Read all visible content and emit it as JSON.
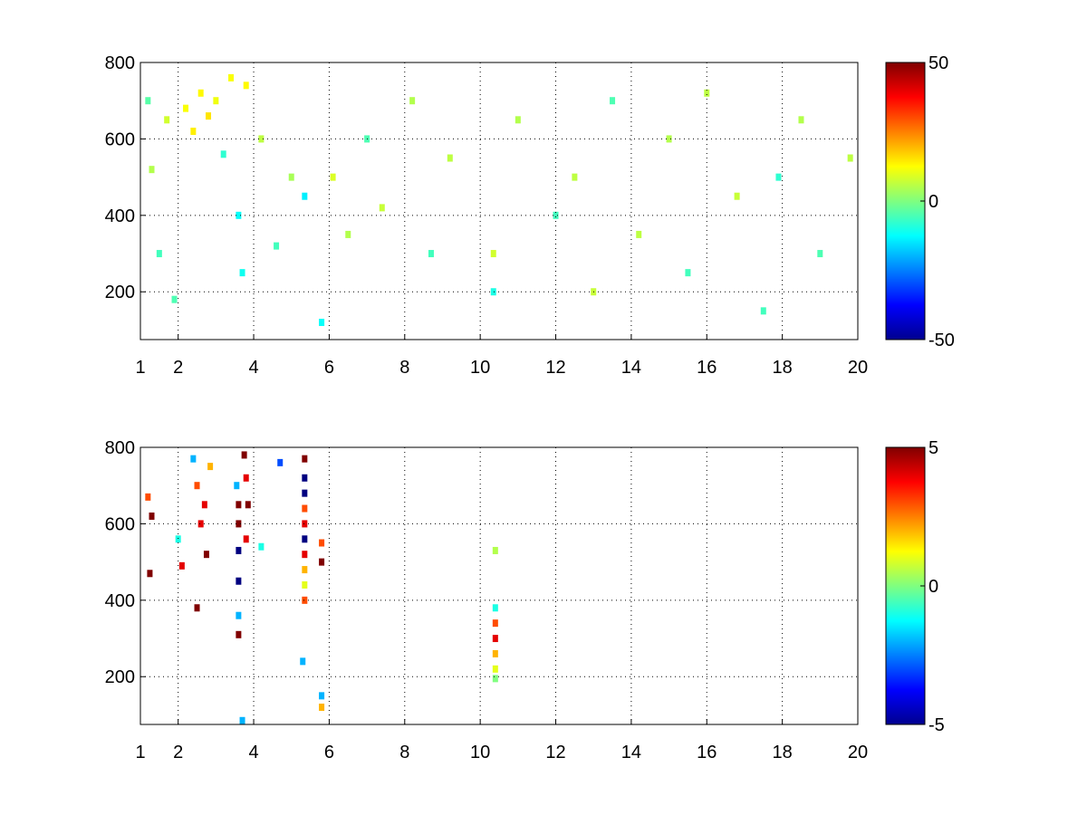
{
  "chart_data": [
    {
      "type": "heatmap",
      "title": "",
      "xlabel": "",
      "ylabel": "",
      "xlim": [
        1,
        20
      ],
      "ylim": [
        75,
        800
      ],
      "x_ticks": [
        1,
        2,
        4,
        6,
        8,
        10,
        12,
        14,
        16,
        18,
        20
      ],
      "x_tick_labels": [
        "1",
        "2",
        "4",
        "6",
        "8",
        "10",
        "12",
        "14",
        "16",
        "18",
        "20"
      ],
      "y_ticks": [
        200,
        400,
        600,
        800
      ],
      "y_tick_labels": [
        "200",
        "400",
        "600",
        "800"
      ],
      "grid": true,
      "grid_style": "dotted",
      "colormap": "jet",
      "clim": [
        -50,
        50
      ],
      "colorbar_ticks": [
        50,
        0,
        -50
      ],
      "colorbar_tick_labels": [
        "50",
        "0",
        "-50"
      ],
      "description_of_pattern": "",
      "cells": [
        {
          "x": 1.2,
          "y": 700,
          "v": -4
        },
        {
          "x": 1.3,
          "y": 520,
          "v": 5
        },
        {
          "x": 1.5,
          "y": 300,
          "v": -6
        },
        {
          "x": 1.7,
          "y": 650,
          "v": 8
        },
        {
          "x": 1.9,
          "y": 180,
          "v": -5
        },
        {
          "x": 2.2,
          "y": 680,
          "v": 12
        },
        {
          "x": 2.4,
          "y": 620,
          "v": 14
        },
        {
          "x": 2.6,
          "y": 720,
          "v": 13
        },
        {
          "x": 2.8,
          "y": 660,
          "v": 15
        },
        {
          "x": 3.0,
          "y": 700,
          "v": 11
        },
        {
          "x": 3.2,
          "y": 560,
          "v": -8
        },
        {
          "x": 3.4,
          "y": 760,
          "v": 12
        },
        {
          "x": 3.6,
          "y": 400,
          "v": -12
        },
        {
          "x": 3.7,
          "y": 250,
          "v": -11
        },
        {
          "x": 3.8,
          "y": 740,
          "v": 13
        },
        {
          "x": 4.2,
          "y": 600,
          "v": 6
        },
        {
          "x": 4.6,
          "y": 320,
          "v": -6
        },
        {
          "x": 5.0,
          "y": 500,
          "v": 4
        },
        {
          "x": 5.35,
          "y": 450,
          "v": -14
        },
        {
          "x": 5.8,
          "y": 120,
          "v": -12
        },
        {
          "x": 6.1,
          "y": 500,
          "v": 9
        },
        {
          "x": 6.5,
          "y": 350,
          "v": 5
        },
        {
          "x": 7.0,
          "y": 600,
          "v": -5
        },
        {
          "x": 7.4,
          "y": 420,
          "v": 7
        },
        {
          "x": 8.2,
          "y": 700,
          "v": 5
        },
        {
          "x": 8.7,
          "y": 300,
          "v": -6
        },
        {
          "x": 9.2,
          "y": 550,
          "v": 6
        },
        {
          "x": 10.35,
          "y": 300,
          "v": 8
        },
        {
          "x": 10.35,
          "y": 200,
          "v": -10
        },
        {
          "x": 11.0,
          "y": 650,
          "v": 5
        },
        {
          "x": 12.0,
          "y": 400,
          "v": -6
        },
        {
          "x": 12.5,
          "y": 500,
          "v": 6
        },
        {
          "x": 13.0,
          "y": 200,
          "v": 7
        },
        {
          "x": 13.5,
          "y": 700,
          "v": -5
        },
        {
          "x": 14.2,
          "y": 350,
          "v": 6
        },
        {
          "x": 15.0,
          "y": 600,
          "v": 5
        },
        {
          "x": 15.5,
          "y": 250,
          "v": -6
        },
        {
          "x": 16.0,
          "y": 720,
          "v": 6
        },
        {
          "x": 16.8,
          "y": 450,
          "v": 7
        },
        {
          "x": 17.5,
          "y": 150,
          "v": -6
        },
        {
          "x": 17.9,
          "y": 500,
          "v": -8
        },
        {
          "x": 18.5,
          "y": 650,
          "v": 5
        },
        {
          "x": 19.0,
          "y": 300,
          "v": -5
        },
        {
          "x": 19.8,
          "y": 550,
          "v": 6
        }
      ]
    },
    {
      "type": "heatmap",
      "title": "",
      "xlabel": "",
      "ylabel": "",
      "xlim": [
        1,
        20
      ],
      "ylim": [
        75,
        800
      ],
      "x_ticks": [
        1,
        2,
        4,
        6,
        8,
        10,
        12,
        14,
        16,
        18,
        20
      ],
      "x_tick_labels": [
        "1",
        "2",
        "4",
        "6",
        "8",
        "10",
        "12",
        "14",
        "16",
        "18",
        "20"
      ],
      "y_ticks": [
        200,
        400,
        600,
        800
      ],
      "y_tick_labels": [
        "200",
        "400",
        "600",
        "800"
      ],
      "grid": true,
      "grid_style": "dotted",
      "colormap": "jet",
      "clim": [
        -5,
        5
      ],
      "colorbar_ticks": [
        5,
        0,
        -5
      ],
      "colorbar_tick_labels": [
        "5",
        "0",
        "-5"
      ],
      "description_of_pattern": "",
      "cells": [
        {
          "x": 1.2,
          "y": 670,
          "v": 3
        },
        {
          "x": 1.3,
          "y": 620,
          "v": 5
        },
        {
          "x": 1.25,
          "y": 470,
          "v": 5
        },
        {
          "x": 2.0,
          "y": 560,
          "v": -1
        },
        {
          "x": 2.1,
          "y": 490,
          "v": 4
        },
        {
          "x": 2.4,
          "y": 770,
          "v": -2
        },
        {
          "x": 2.5,
          "y": 700,
          "v": 3
        },
        {
          "x": 2.6,
          "y": 600,
          "v": 4
        },
        {
          "x": 2.7,
          "y": 650,
          "v": 4
        },
        {
          "x": 2.75,
          "y": 520,
          "v": 5
        },
        {
          "x": 2.85,
          "y": 750,
          "v": 2
        },
        {
          "x": 2.5,
          "y": 380,
          "v": 5
        },
        {
          "x": 3.55,
          "y": 700,
          "v": -2
        },
        {
          "x": 3.6,
          "y": 650,
          "v": 5
        },
        {
          "x": 3.6,
          "y": 600,
          "v": 5
        },
        {
          "x": 3.6,
          "y": 530,
          "v": -5
        },
        {
          "x": 3.6,
          "y": 450,
          "v": -5
        },
        {
          "x": 3.6,
          "y": 360,
          "v": -2
        },
        {
          "x": 3.6,
          "y": 310,
          "v": 5
        },
        {
          "x": 3.75,
          "y": 780,
          "v": 5
        },
        {
          "x": 3.8,
          "y": 720,
          "v": 4
        },
        {
          "x": 3.85,
          "y": 650,
          "v": 5
        },
        {
          "x": 3.8,
          "y": 560,
          "v": 4
        },
        {
          "x": 4.2,
          "y": 540,
          "v": -1
        },
        {
          "x": 3.7,
          "y": 85,
          "v": -2
        },
        {
          "x": 4.7,
          "y": 760,
          "v": -3
        },
        {
          "x": 5.3,
          "y": 240,
          "v": -2
        },
        {
          "x": 5.35,
          "y": 770,
          "v": 5
        },
        {
          "x": 5.35,
          "y": 720,
          "v": -5
        },
        {
          "x": 5.35,
          "y": 680,
          "v": -5
        },
        {
          "x": 5.35,
          "y": 640,
          "v": 3
        },
        {
          "x": 5.35,
          "y": 600,
          "v": 4
        },
        {
          "x": 5.35,
          "y": 560,
          "v": -5
        },
        {
          "x": 5.35,
          "y": 520,
          "v": 4
        },
        {
          "x": 5.35,
          "y": 480,
          "v": 2
        },
        {
          "x": 5.35,
          "y": 440,
          "v": 1
        },
        {
          "x": 5.35,
          "y": 400,
          "v": 3
        },
        {
          "x": 5.8,
          "y": 550,
          "v": 3
        },
        {
          "x": 5.8,
          "y": 500,
          "v": 5
        },
        {
          "x": 5.8,
          "y": 150,
          "v": -2
        },
        {
          "x": 5.8,
          "y": 120,
          "v": 2
        },
        {
          "x": 10.4,
          "y": 530,
          "v": 0.5
        },
        {
          "x": 10.4,
          "y": 380,
          "v": -1
        },
        {
          "x": 10.4,
          "y": 340,
          "v": 3
        },
        {
          "x": 10.4,
          "y": 300,
          "v": 4
        },
        {
          "x": 10.4,
          "y": 260,
          "v": 2
        },
        {
          "x": 10.4,
          "y": 220,
          "v": 1
        },
        {
          "x": 10.4,
          "y": 195,
          "v": 0
        }
      ]
    }
  ]
}
